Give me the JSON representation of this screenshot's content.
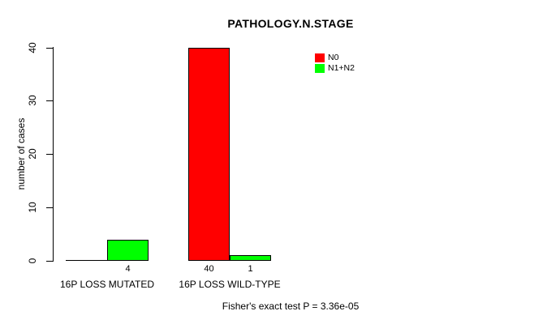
{
  "chart_data": {
    "type": "bar",
    "title": "PATHOLOGY.N.STAGE",
    "ylabel": "number of cases",
    "xlabel": "",
    "ylim": [
      0,
      40
    ],
    "yticks": [
      0,
      10,
      20,
      30,
      40
    ],
    "grid": false,
    "legend_position": "top-right-inside",
    "categories": [
      "16P LOSS MUTATED",
      "16P LOSS WILD-TYPE"
    ],
    "series": [
      {
        "name": "N0",
        "color": "#ff0000",
        "values": [
          0,
          40
        ],
        "bar_labels": [
          "",
          "40"
        ]
      },
      {
        "name": "N1+N2",
        "color": "#00ff00",
        "values": [
          4,
          1
        ],
        "bar_labels": [
          "4",
          "1"
        ]
      }
    ],
    "annotation": "Fisher's exact test P = 3.36e-05"
  }
}
